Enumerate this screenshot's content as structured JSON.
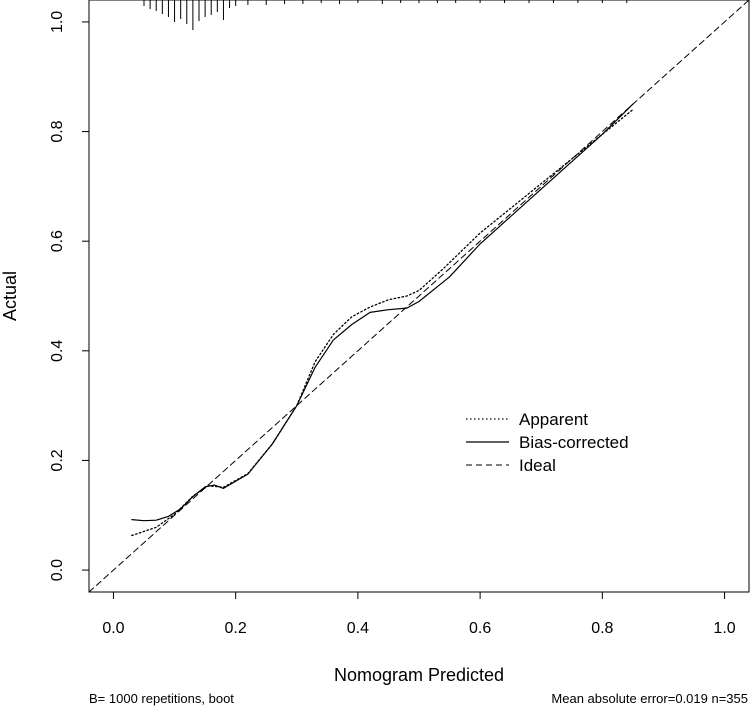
{
  "chart_data": {
    "type": "line",
    "title": "",
    "xlabel": "Nomogram Predicted",
    "ylabel": "Actual",
    "xlim": [
      -0.04,
      1.04
    ],
    "ylim": [
      -0.04,
      1.04
    ],
    "x_ticks": [
      0.0,
      0.2,
      0.4,
      0.6,
      0.8,
      1.0
    ],
    "x_tick_labels": [
      "0.0",
      "0.2",
      "0.4",
      "0.6",
      "0.8",
      "1.0"
    ],
    "y_ticks": [
      0.0,
      0.2,
      0.4,
      0.6,
      0.8,
      1.0
    ],
    "y_tick_labels": [
      "0.0",
      "0.2",
      "0.4",
      "0.6",
      "0.8",
      "1.0"
    ],
    "grid": false,
    "legend_position": "bottom-right",
    "series": [
      {
        "name": "Apparent",
        "style": "dotted",
        "x": [
          0.03,
          0.07,
          0.1,
          0.13,
          0.155,
          0.18,
          0.22,
          0.26,
          0.3,
          0.33,
          0.36,
          0.39,
          0.42,
          0.45,
          0.48,
          0.5,
          0.54,
          0.6,
          0.7,
          0.8,
          0.85
        ],
        "y": [
          0.063,
          0.078,
          0.102,
          0.135,
          0.154,
          0.151,
          0.176,
          0.23,
          0.3,
          0.38,
          0.43,
          0.462,
          0.48,
          0.493,
          0.5,
          0.51,
          0.55,
          0.615,
          0.705,
          0.795,
          0.84
        ]
      },
      {
        "name": "Bias-corrected",
        "style": "solid",
        "x": [
          0.03,
          0.05,
          0.07,
          0.09,
          0.11,
          0.13,
          0.15,
          0.165,
          0.18,
          0.22,
          0.26,
          0.3,
          0.33,
          0.36,
          0.39,
          0.42,
          0.45,
          0.48,
          0.5,
          0.55,
          0.6,
          0.7,
          0.8,
          0.85
        ],
        "y": [
          0.092,
          0.09,
          0.091,
          0.098,
          0.112,
          0.134,
          0.152,
          0.155,
          0.149,
          0.175,
          0.23,
          0.3,
          0.37,
          0.42,
          0.448,
          0.47,
          0.475,
          0.478,
          0.49,
          0.535,
          0.595,
          0.695,
          0.795,
          0.85
        ]
      },
      {
        "name": "Ideal",
        "style": "dashed",
        "x": [
          -0.04,
          1.04
        ],
        "y": [
          -0.04,
          1.04
        ]
      }
    ],
    "rug_ticks": [
      {
        "x": 0.05,
        "len": 6
      },
      {
        "x": 0.06,
        "len": 9
      },
      {
        "x": 0.07,
        "len": 11
      },
      {
        "x": 0.08,
        "len": 14
      },
      {
        "x": 0.09,
        "len": 17
      },
      {
        "x": 0.1,
        "len": 22
      },
      {
        "x": 0.11,
        "len": 19
      },
      {
        "x": 0.12,
        "len": 24
      },
      {
        "x": 0.13,
        "len": 30
      },
      {
        "x": 0.14,
        "len": 21
      },
      {
        "x": 0.15,
        "len": 17
      },
      {
        "x": 0.16,
        "len": 15
      },
      {
        "x": 0.17,
        "len": 12
      },
      {
        "x": 0.18,
        "len": 20
      },
      {
        "x": 0.19,
        "len": 8
      },
      {
        "x": 0.2,
        "len": 6
      },
      {
        "x": 0.22,
        "len": 5
      },
      {
        "x": 0.25,
        "len": 5
      },
      {
        "x": 0.28,
        "len": 4
      },
      {
        "x": 0.31,
        "len": 4
      },
      {
        "x": 0.34,
        "len": 3
      },
      {
        "x": 0.37,
        "len": 4
      },
      {
        "x": 0.4,
        "len": 3
      },
      {
        "x": 0.44,
        "len": 4
      },
      {
        "x": 0.47,
        "len": 3
      },
      {
        "x": 0.5,
        "len": 3
      },
      {
        "x": 0.53,
        "len": 3
      },
      {
        "x": 0.56,
        "len": 3
      },
      {
        "x": 0.6,
        "len": 3
      },
      {
        "x": 0.64,
        "len": 3
      },
      {
        "x": 0.68,
        "len": 3
      },
      {
        "x": 0.72,
        "len": 3
      },
      {
        "x": 0.76,
        "len": 3
      },
      {
        "x": 0.8,
        "len": 3
      },
      {
        "x": 0.84,
        "len": 3
      }
    ],
    "footnote_left": "B= 1000 repetitions, boot",
    "footnote_right": "Mean absolute error=0.019 n=355"
  }
}
